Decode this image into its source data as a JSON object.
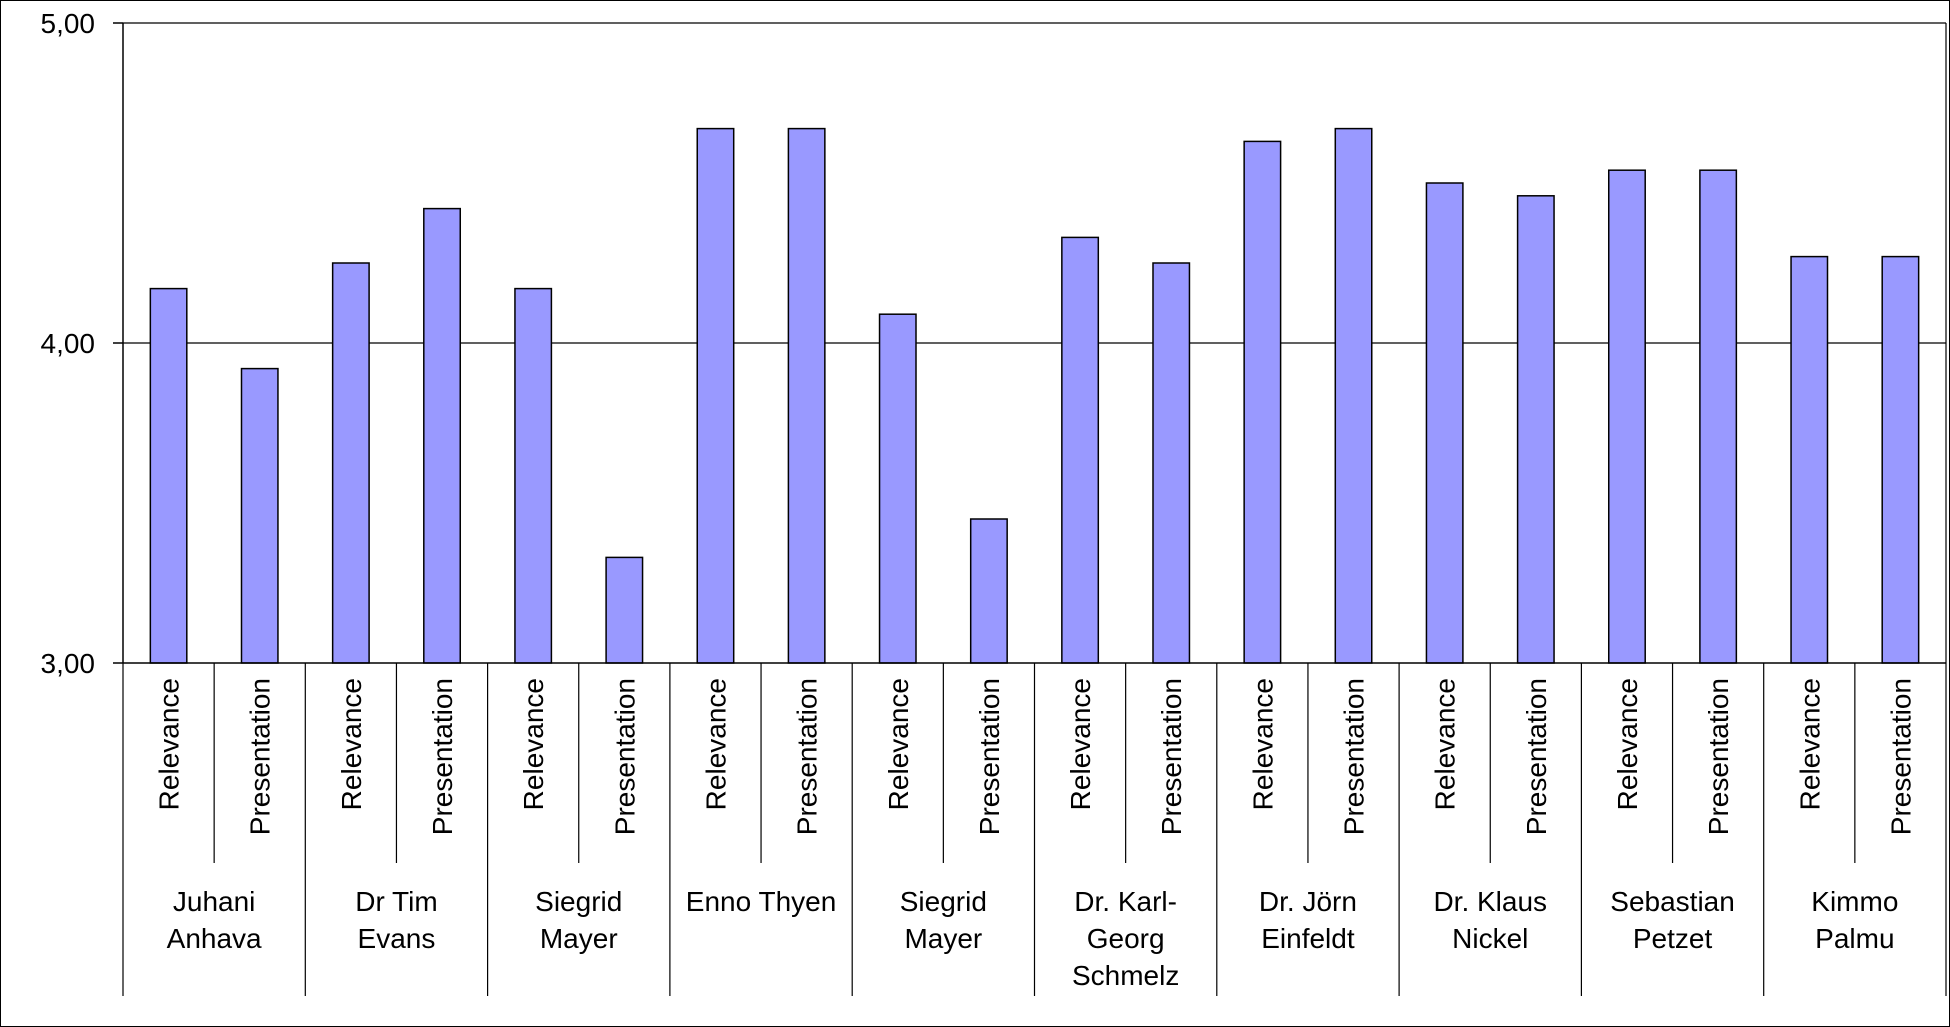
{
  "chart_data": {
    "type": "bar",
    "title": "",
    "xlabel": "",
    "ylabel": "",
    "ylim": [
      3.0,
      5.0
    ],
    "yticks": [
      {
        "value": 3.0,
        "label": "3,00"
      },
      {
        "value": 4.0,
        "label": "4,00"
      },
      {
        "value": 5.0,
        "label": "5,00"
      }
    ],
    "grid": true,
    "legend": "none",
    "bar_color": "#9999FF",
    "bar_edge_color": "#000000",
    "groups": [
      {
        "name_lines": [
          "Juhani",
          "Anhava"
        ],
        "bars": [
          {
            "label": "Relevance",
            "value": 4.17
          },
          {
            "label": "Presentation",
            "value": 3.92
          }
        ]
      },
      {
        "name_lines": [
          "Dr Tim",
          "Evans"
        ],
        "bars": [
          {
            "label": "Relevance",
            "value": 4.25
          },
          {
            "label": "Presentation",
            "value": 4.42
          }
        ]
      },
      {
        "name_lines": [
          "Siegrid",
          "Mayer"
        ],
        "bars": [
          {
            "label": "Relevance",
            "value": 4.17
          },
          {
            "label": "Presentation",
            "value": 3.33
          }
        ]
      },
      {
        "name_lines": [
          "Enno Thyen"
        ],
        "bars": [
          {
            "label": "Relevance",
            "value": 4.67
          },
          {
            "label": "Presentation",
            "value": 4.67
          }
        ]
      },
      {
        "name_lines": [
          "Siegrid",
          "Mayer"
        ],
        "bars": [
          {
            "label": "Relevance",
            "value": 4.09
          },
          {
            "label": "Presentation",
            "value": 3.45
          }
        ]
      },
      {
        "name_lines": [
          "Dr. Karl-",
          "Georg",
          "Schmelz"
        ],
        "bars": [
          {
            "label": "Relevance",
            "value": 4.33
          },
          {
            "label": "Presentation",
            "value": 4.25
          }
        ]
      },
      {
        "name_lines": [
          "Dr. Jörn",
          "Einfeldt"
        ],
        "bars": [
          {
            "label": "Relevance",
            "value": 4.63
          },
          {
            "label": "Presentation",
            "value": 4.67
          }
        ]
      },
      {
        "name_lines": [
          "Dr. Klaus",
          "Nickel"
        ],
        "bars": [
          {
            "label": "Relevance",
            "value": 4.5
          },
          {
            "label": "Presentation",
            "value": 4.46
          }
        ]
      },
      {
        "name_lines": [
          "Sebastian",
          "Petzet"
        ],
        "bars": [
          {
            "label": "Relevance",
            "value": 4.54
          },
          {
            "label": "Presentation",
            "value": 4.54
          }
        ]
      },
      {
        "name_lines": [
          "Kimmo",
          "Palmu"
        ],
        "bars": [
          {
            "label": "Relevance",
            "value": 4.27
          },
          {
            "label": "Presentation",
            "value": 4.27
          }
        ]
      }
    ]
  }
}
